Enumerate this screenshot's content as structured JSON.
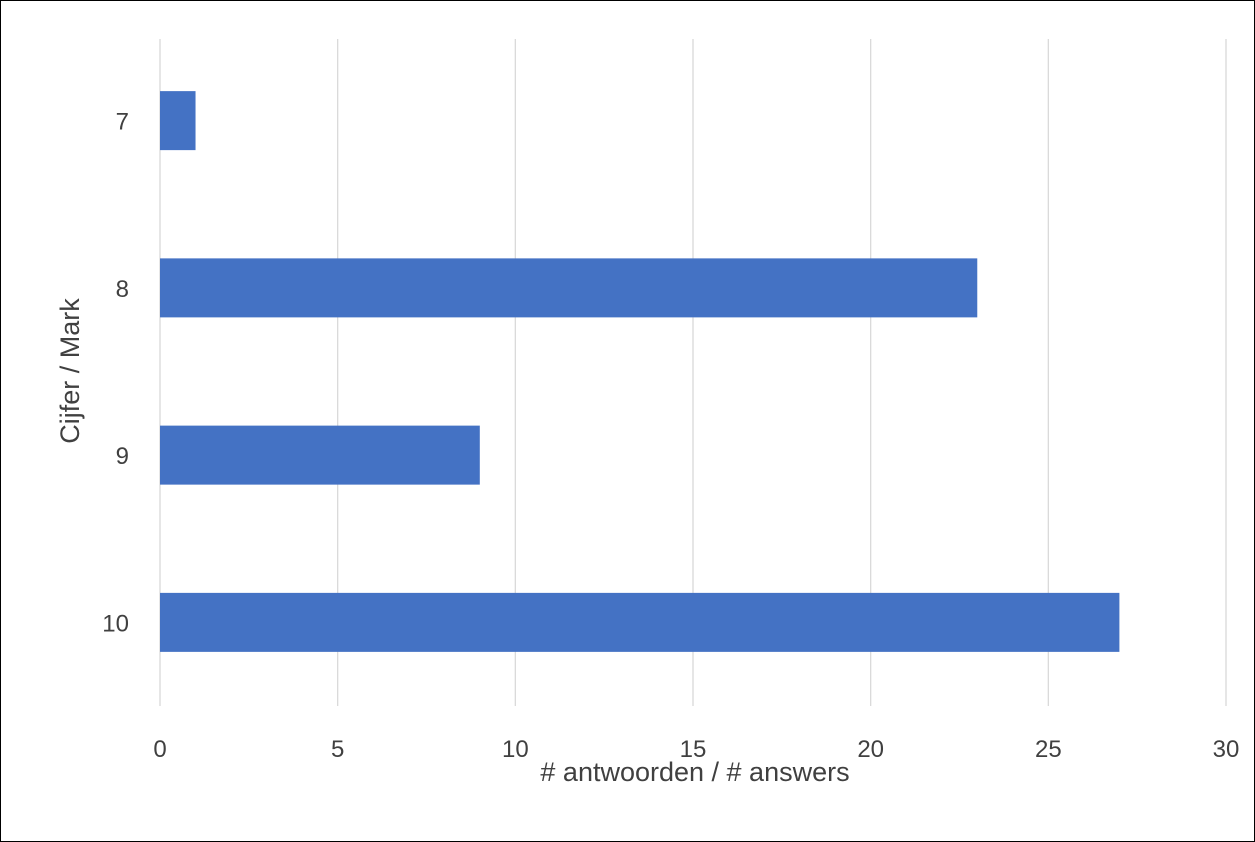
{
  "chart_data": {
    "type": "bar",
    "orientation": "horizontal",
    "categories": [
      "7",
      "8",
      "9",
      "10"
    ],
    "values": [
      1,
      23,
      9,
      27
    ],
    "xlabel": "# antwoorden / # answers",
    "ylabel": "Cijfer / Mark",
    "xlim": [
      0,
      30
    ],
    "xticks": [
      "0",
      "5",
      "10",
      "15",
      "20",
      "25",
      "30"
    ],
    "grid": "vertical",
    "legend": "none",
    "bar_color": "#4472C4",
    "grid_color": "#D9D9D9",
    "text_color": "#404040"
  }
}
